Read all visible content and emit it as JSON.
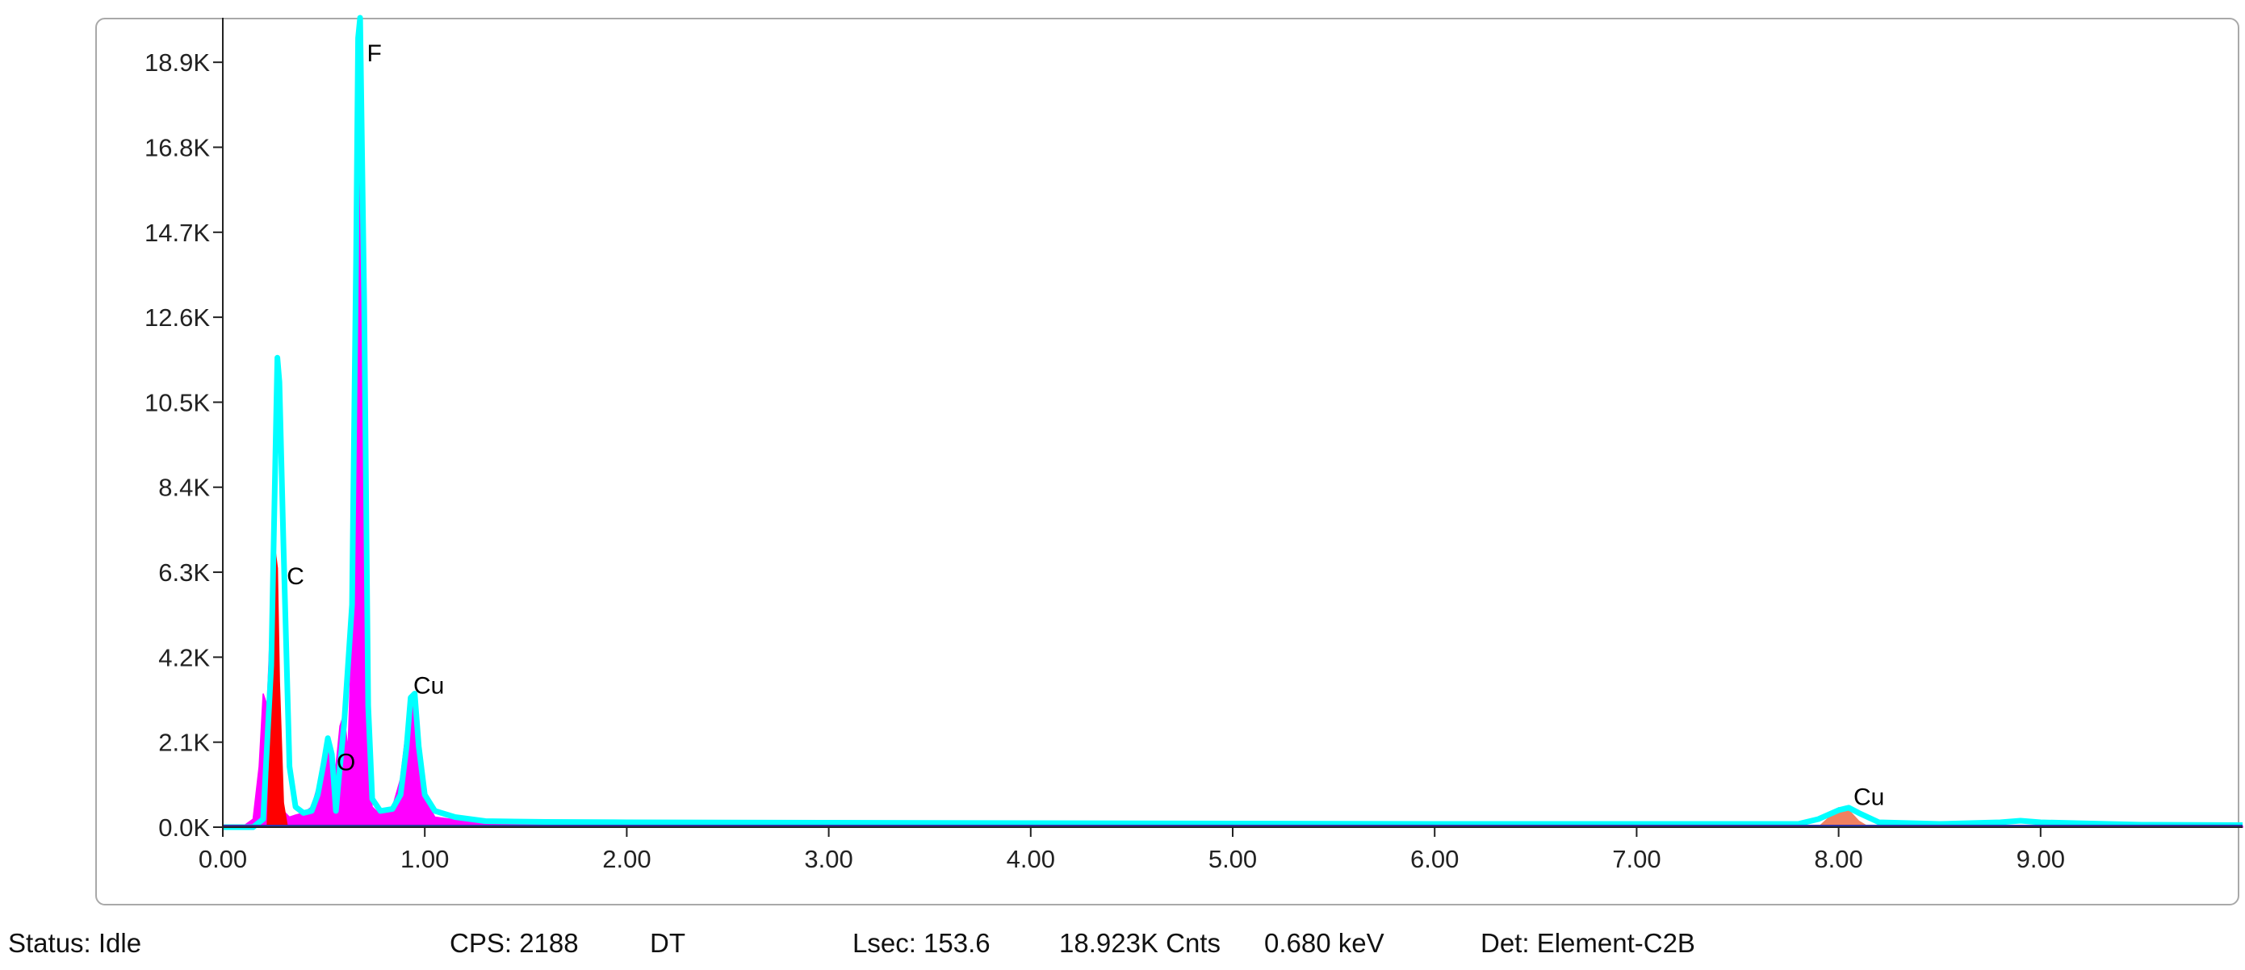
{
  "chart_data": {
    "type": "area",
    "xlim": [
      0,
      10
    ],
    "ylim": [
      0,
      20000
    ],
    "x_ticks": [
      0,
      1,
      2,
      3,
      4,
      5,
      6,
      7,
      8,
      9
    ],
    "x_tick_labels": [
      "0.00",
      "1.00",
      "2.00",
      "3.00",
      "4.00",
      "5.00",
      "6.00",
      "7.00",
      "8.00",
      "9.00"
    ],
    "y_ticks": [
      0,
      2100,
      4200,
      6300,
      8400,
      10500,
      12600,
      14700,
      16800,
      18900
    ],
    "y_tick_labels": [
      "0.0K",
      "2.1K",
      "4.2K",
      "6.3K",
      "8.4K",
      "10.5K",
      "12.6K",
      "14.7K",
      "16.8K",
      "18.9K"
    ],
    "grid": false,
    "series": [
      {
        "color": "#ff00ff",
        "x": [
          0.1,
          0.15,
          0.18,
          0.2,
          0.22,
          0.24,
          0.26,
          0.28,
          0.3,
          0.33,
          0.36,
          0.4,
          0.44,
          0.48,
          0.5,
          0.52,
          0.53,
          0.54,
          0.56,
          0.58,
          0.6,
          0.62,
          0.64,
          0.66,
          0.67,
          0.68,
          0.69,
          0.7,
          0.72,
          0.74,
          0.76,
          0.8,
          0.84,
          0.88,
          0.92,
          0.94,
          0.96,
          1.0,
          1.05,
          1.2,
          1.5,
          2.0,
          3.0,
          5.0,
          7.0,
          8.0,
          9.0,
          10.0
        ],
        "y": [
          20,
          200,
          1500,
          3300,
          3000,
          5500,
          6200,
          1800,
          400,
          250,
          300,
          350,
          500,
          1200,
          1800,
          2000,
          1600,
          1000,
          1500,
          2500,
          2800,
          1900,
          5000,
          13000,
          18500,
          19000,
          17000,
          8000,
          1200,
          500,
          400,
          350,
          500,
          1200,
          2900,
          3200,
          2400,
          700,
          250,
          150,
          80,
          40,
          30,
          25,
          20,
          20,
          20,
          20
        ]
      },
      {
        "color": "#ff0000",
        "x": [
          0.22,
          0.24,
          0.26,
          0.27,
          0.28,
          0.3,
          0.32
        ],
        "y": [
          0,
          3000,
          6800,
          6400,
          3600,
          600,
          0
        ]
      },
      {
        "color": "#f08060",
        "x": [
          7.9,
          7.95,
          8.0,
          8.05,
          8.1,
          8.15
        ],
        "y": [
          0,
          230,
          480,
          420,
          150,
          0
        ]
      },
      {
        "color": "#00ffff",
        "x": [
          0.0,
          0.1,
          0.15,
          0.2,
          0.24,
          0.27,
          0.28,
          0.3,
          0.33,
          0.36,
          0.4,
          0.44,
          0.47,
          0.5,
          0.52,
          0.54,
          0.56,
          0.58,
          0.6,
          0.64,
          0.66,
          0.67,
          0.68,
          0.7,
          0.72,
          0.74,
          0.78,
          0.84,
          0.88,
          0.91,
          0.93,
          0.95,
          0.97,
          1.0,
          1.05,
          1.15,
          1.3,
          1.6,
          2.0,
          3.0,
          4.0,
          5.0,
          6.0,
          7.0,
          7.8,
          7.9,
          8.0,
          8.05,
          8.1,
          8.2,
          8.5,
          8.8,
          8.9,
          9.0,
          9.5,
          10.0
        ],
        "y": [
          0,
          0,
          0,
          200,
          4000,
          11600,
          11000,
          7000,
          1500,
          500,
          350,
          400,
          800,
          1600,
          2200,
          1800,
          400,
          1500,
          2500,
          5500,
          14000,
          19500,
          20000,
          13000,
          3000,
          700,
          400,
          450,
          800,
          2000,
          3200,
          3300,
          2000,
          800,
          400,
          250,
          150,
          130,
          120,
          110,
          100,
          90,
          80,
          80,
          80,
          200,
          420,
          480,
          350,
          120,
          80,
          120,
          160,
          120,
          60,
          50
        ]
      }
    ],
    "annotations": [
      {
        "text": "F",
        "x": 0.75,
        "y": 20000
      },
      {
        "text": "C",
        "x": 0.36,
        "y": 6800
      },
      {
        "text": "Cu",
        "x": 1.02,
        "y": 4100
      },
      {
        "text": "O",
        "x": 0.61,
        "y": 2200
      },
      {
        "text": "Cu",
        "x": 8.15,
        "y": 1350
      }
    ]
  },
  "status_bar": {
    "status": "Status: Idle",
    "cps": "CPS: 2188",
    "dt": "DT",
    "lsec": "Lsec: 153.6",
    "cnts": "18.923K Cnts",
    "kev": "0.680 keV",
    "det": "Det: Element-C2B"
  }
}
